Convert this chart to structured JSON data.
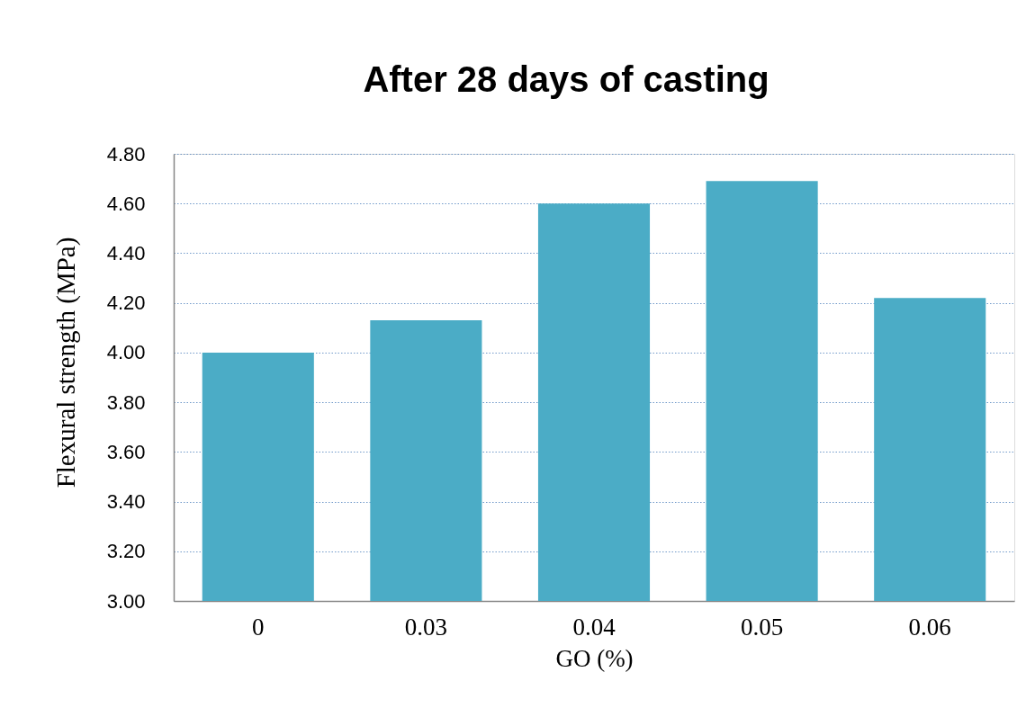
{
  "chart_data": {
    "type": "bar",
    "title": "After 28 days of casting",
    "xlabel": "GO (%)",
    "ylabel": "Flexural strength (MPa)",
    "categories": [
      "0",
      "0.03",
      "0.04",
      "0.05",
      "0.06"
    ],
    "values": [
      4.0,
      4.13,
      4.6,
      4.69,
      4.22
    ],
    "color": "#4bacc6",
    "ylim": [
      3.0,
      4.8
    ],
    "yticks": [
      {
        "value": 3.0,
        "label": "3.00"
      },
      {
        "value": 3.2,
        "label": "3.20"
      },
      {
        "value": 3.4,
        "label": "3.40"
      },
      {
        "value": 3.6,
        "label": "3.60"
      },
      {
        "value": 3.8,
        "label": "3.80"
      },
      {
        "value": 4.0,
        "label": "4.00"
      },
      {
        "value": 4.2,
        "label": "4.20"
      },
      {
        "value": 4.4,
        "label": "4.40"
      },
      {
        "value": 4.6,
        "label": "4.60"
      },
      {
        "value": 4.8,
        "label": "4.80"
      }
    ],
    "grid": "y"
  }
}
